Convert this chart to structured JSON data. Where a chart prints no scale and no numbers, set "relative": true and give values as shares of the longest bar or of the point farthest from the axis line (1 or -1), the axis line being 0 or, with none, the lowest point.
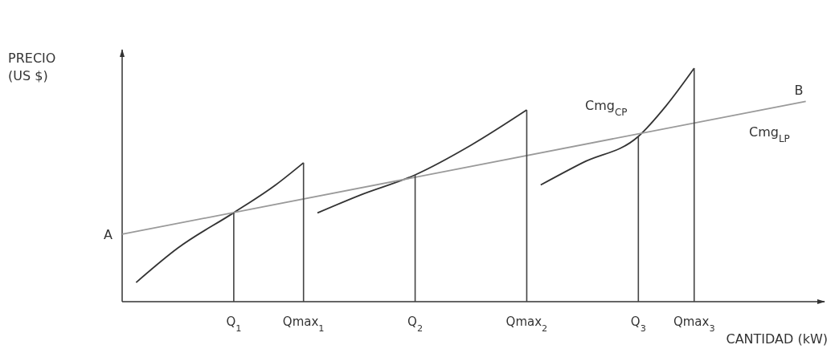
{
  "chart_data": {
    "type": "line",
    "relative": true,
    "xlabel": "CANTIDAD (kW)",
    "grid": false,
    "marker": "none",
    "line_style": "solid",
    "categories": [
      null,
      null,
      null,
      null,
      null,
      null,
      null,
      null,
      "Q$_{1}$",
      null,
      null,
      null,
      null,
      "Qmax$_{1}$",
      null,
      null,
      null,
      null,
      null,
      null,
      null,
      "Q$_{2}$",
      null,
      null,
      null,
      null,
      null,
      null,
      null,
      "Qmax$_{2}$",
      null,
      null,
      null,
      null,
      null,
      null,
      null,
      "Q$_{3}$",
      null,
      null,
      null,
      "Qmax$_{3}$",
      null,
      null,
      null,
      null,
      null,
      null,
      null,
      null,
      null
    ],
    "series": [
      {
        "color": "#333333",
        "values": [
          null,
          0.082,
          null,
          null,
          0.23,
          null,
          null,
          null,
          0.381,
          null,
          null,
          0.5,
          null,
          0.595,
          null,
          null,
          null,
          null,
          null,
          null,
          null,
          null,
          null,
          null,
          null,
          null,
          null,
          null,
          null,
          null,
          null,
          null,
          null,
          null,
          null,
          null,
          null,
          null,
          null,
          null,
          null,
          null,
          null,
          null,
          null,
          null,
          null,
          null,
          null,
          null,
          null
        ]
      },
      {
        "color": "#333333",
        "values": [
          null,
          null,
          null,
          null,
          null,
          null,
          null,
          null,
          null,
          null,
          null,
          null,
          null,
          null,
          0.38,
          null,
          null,
          0.455,
          null,
          null,
          null,
          0.543,
          null,
          null,
          null,
          0.67,
          null,
          null,
          null,
          0.821,
          null,
          null,
          null,
          null,
          null,
          null,
          null,
          null,
          null,
          null,
          null,
          null,
          null,
          null,
          null,
          null,
          null,
          null,
          null,
          null,
          null
        ]
      },
      {
        "color": "#333333",
        "values": [
          null,
          null,
          null,
          null,
          null,
          null,
          null,
          null,
          null,
          null,
          null,
          null,
          null,
          null,
          null,
          null,
          null,
          null,
          null,
          null,
          null,
          null,
          null,
          null,
          null,
          null,
          null,
          null,
          null,
          null,
          0.5,
          null,
          null,
          0.595,
          null,
          null,
          null,
          0.708,
          null,
          0.84,
          null,
          1.0,
          null,
          null,
          null,
          null,
          null,
          null,
          null,
          null,
          null
        ]
      },
      {
        "color": "#9a9a9a",
        "values": [
          0.289,
          null,
          null,
          null,
          null,
          null,
          null,
          null,
          null,
          null,
          null,
          null,
          null,
          null,
          null,
          null,
          null,
          null,
          null,
          null,
          null,
          null,
          null,
          null,
          null,
          null,
          null,
          null,
          null,
          null,
          null,
          null,
          null,
          null,
          null,
          null,
          null,
          null,
          null,
          null,
          null,
          null,
          null,
          null,
          null,
          null,
          null,
          null,
          null,
          0.858,
          null
        ]
      },
      {
        "type": "bar",
        "color": "#444444",
        "values": [
          null,
          null,
          null,
          null,
          null,
          null,
          null,
          null,
          0.381,
          null,
          null,
          null,
          null,
          0.595,
          null,
          null,
          null,
          null,
          null,
          null,
          null,
          0.543,
          null,
          null,
          null,
          null,
          null,
          null,
          null,
          0.821,
          null,
          null,
          null,
          null,
          null,
          null,
          null,
          0.708,
          null,
          null,
          null,
          1.0,
          null,
          null,
          null,
          null,
          null,
          null,
          null,
          null,
          null
        ]
      }
    ],
    "annotations": [
      "A",
      "B",
      "Cmg$_{CP}$",
      "Cmg$_{LP}$",
      "PRECIO\n(US $)"
    ]
  }
}
